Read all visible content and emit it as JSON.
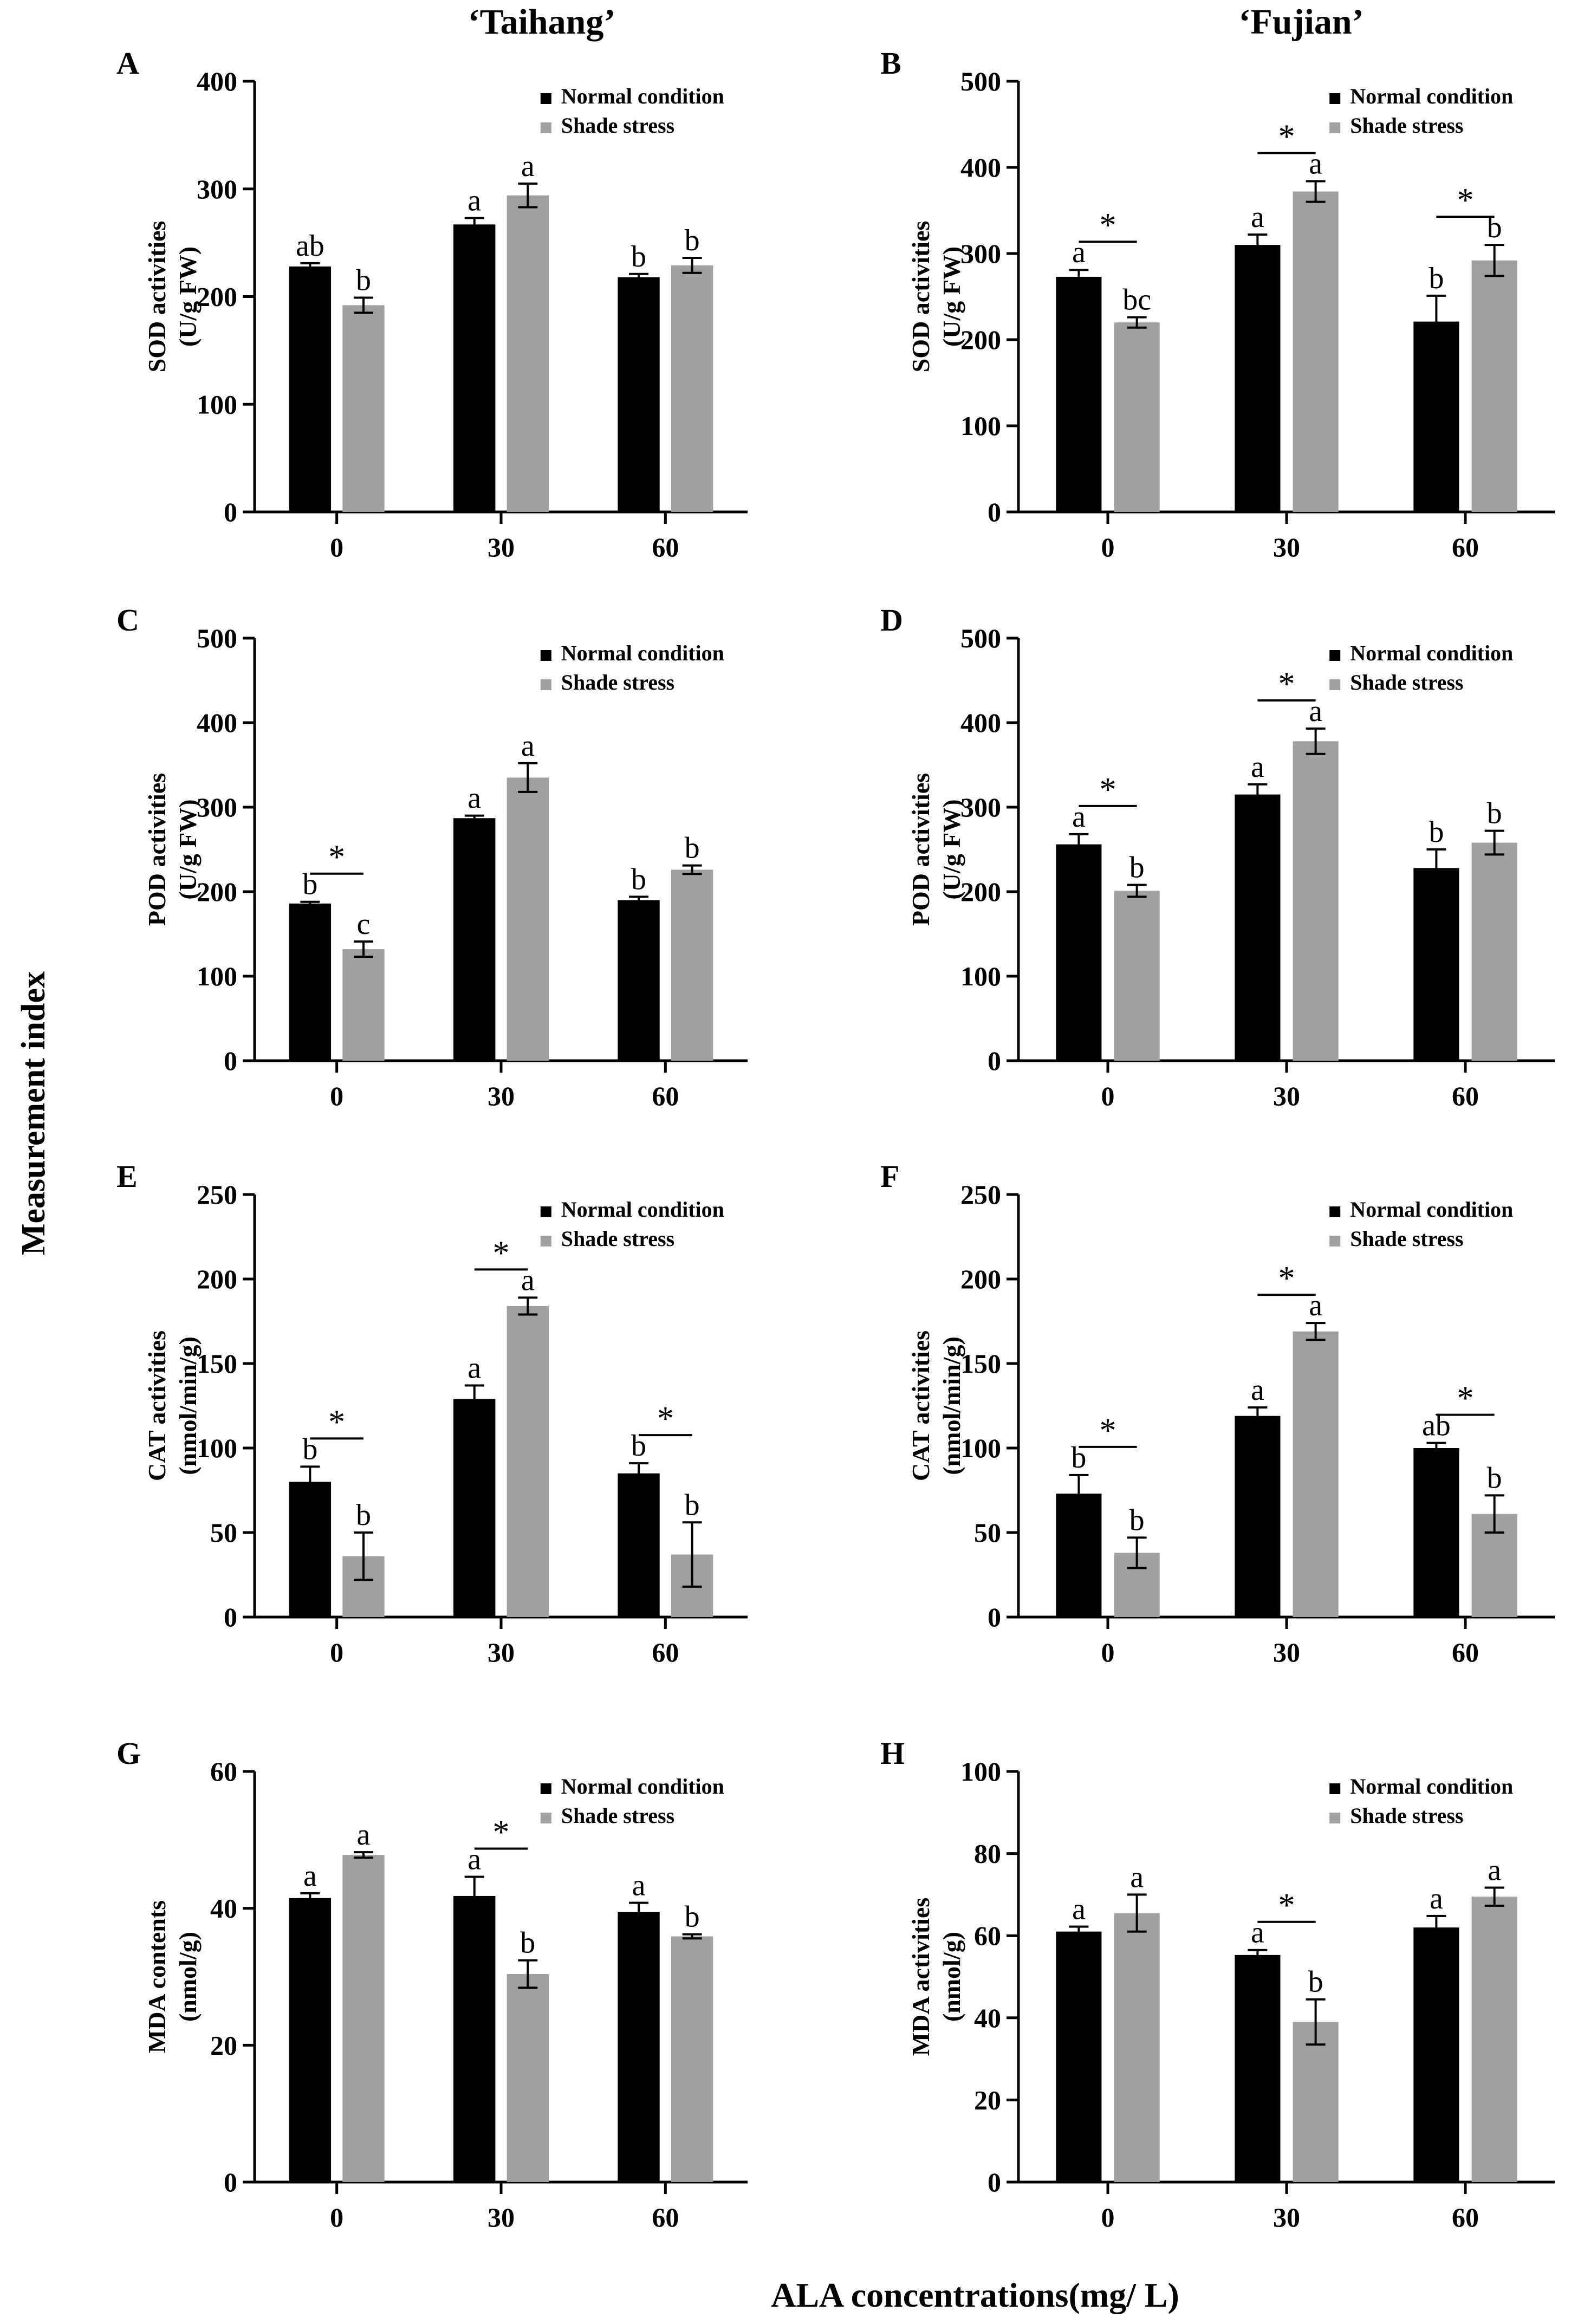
{
  "figure": {
    "column_titles": [
      "‘Taihang’",
      "‘Fujian’"
    ],
    "shared_ylabel": "Measurement index",
    "shared_xlabel": "ALA concentrations(mg/ L)"
  },
  "colors": {
    "normal": "#000000",
    "shade": "#a0a0a0",
    "axis": "#000000"
  },
  "chart_data": [
    {
      "type": "bar",
      "panel": "A",
      "column": "‘Taihang’",
      "ylabel_lines": [
        "SOD activities",
        "(U/g FW)"
      ],
      "categories": [
        "0",
        "30",
        "60"
      ],
      "ylim": [
        0,
        400
      ],
      "yticks": [
        "0",
        "100",
        "200",
        "300",
        "400"
      ],
      "series": [
        {
          "name": "Normal condition",
          "values": [
            228,
            267,
            218
          ],
          "err": [
            3,
            6,
            3
          ],
          "letters": [
            "ab",
            "a",
            "b"
          ]
        },
        {
          "name": "Shade stress",
          "values": [
            192,
            294,
            229
          ],
          "err": [
            7,
            11,
            7
          ],
          "letters": [
            "b",
            "a",
            "b"
          ]
        }
      ],
      "sig": []
    },
    {
      "type": "bar",
      "panel": "B",
      "column": "‘Fujian’",
      "ylabel_lines": [
        "SOD activities",
        "(U/g FW)"
      ],
      "categories": [
        "0",
        "30",
        "60"
      ],
      "ylim": [
        0,
        500
      ],
      "yticks": [
        "0",
        "100",
        "200",
        "300",
        "400",
        "500"
      ],
      "series": [
        {
          "name": "Normal condition",
          "values": [
            273,
            310,
            221
          ],
          "err": [
            8,
            12,
            30
          ],
          "letters": [
            "a",
            "a",
            "b"
          ]
        },
        {
          "name": "Shade stress",
          "values": [
            220,
            372,
            292
          ],
          "err": [
            6,
            12,
            18
          ],
          "letters": [
            "bc",
            "a",
            "b"
          ]
        }
      ],
      "sig": [
        {
          "category": "0",
          "label": "*"
        },
        {
          "category": "30",
          "label": "*"
        },
        {
          "category": "60",
          "label": "*"
        }
      ]
    },
    {
      "type": "bar",
      "panel": "C",
      "column": "‘Taihang’",
      "ylabel_lines": [
        "POD activities",
        "(U/g FW)"
      ],
      "categories": [
        "0",
        "30",
        "60"
      ],
      "ylim": [
        0,
        500
      ],
      "yticks": [
        "0",
        "100",
        "200",
        "300",
        "400",
        "500"
      ],
      "series": [
        {
          "name": "Normal condition",
          "values": [
            186,
            287,
            190
          ],
          "err": [
            2,
            3,
            4
          ],
          "letters": [
            "b",
            "a",
            "b"
          ]
        },
        {
          "name": "Shade stress",
          "values": [
            132,
            335,
            226
          ],
          "err": [
            9,
            17,
            5
          ],
          "letters": [
            "c",
            "a",
            "b"
          ]
        }
      ],
      "sig": [
        {
          "category": "0",
          "label": "*"
        }
      ]
    },
    {
      "type": "bar",
      "panel": "D",
      "column": "‘Fujian’",
      "ylabel_lines": [
        "POD activities",
        "(U/g FW)"
      ],
      "categories": [
        "0",
        "30",
        "60"
      ],
      "ylim": [
        0,
        500
      ],
      "yticks": [
        "0",
        "100",
        "200",
        "300",
        "400",
        "500"
      ],
      "series": [
        {
          "name": "Normal condition",
          "values": [
            256,
            315,
            228
          ],
          "err": [
            12,
            12,
            22
          ],
          "letters": [
            "a",
            "a",
            "b"
          ]
        },
        {
          "name": "Shade stress",
          "values": [
            201,
            378,
            258
          ],
          "err": [
            7,
            15,
            14
          ],
          "letters": [
            "b",
            "a",
            "b"
          ]
        }
      ],
      "sig": [
        {
          "category": "0",
          "label": "*"
        },
        {
          "category": "30",
          "label": "*"
        }
      ]
    },
    {
      "type": "bar",
      "panel": "E",
      "column": "‘Taihang’",
      "ylabel_lines": [
        "CAT activities",
        "(nmol/min/g)"
      ],
      "categories": [
        "0",
        "30",
        "60"
      ],
      "ylim": [
        0,
        250
      ],
      "yticks": [
        "0",
        "50",
        "100",
        "150",
        "200",
        "250"
      ],
      "series": [
        {
          "name": "Normal condition",
          "values": [
            80,
            129,
            85
          ],
          "err": [
            9,
            8,
            6
          ],
          "letters": [
            "b",
            "a",
            "b"
          ]
        },
        {
          "name": "Shade stress",
          "values": [
            36,
            184,
            37
          ],
          "err": [
            14,
            5,
            19
          ],
          "letters": [
            "b",
            "a",
            "b"
          ]
        }
      ],
      "sig": [
        {
          "category": "0",
          "label": "*"
        },
        {
          "category": "30",
          "label": "*"
        },
        {
          "category": "60",
          "label": "*"
        }
      ]
    },
    {
      "type": "bar",
      "panel": "F",
      "column": "‘Fujian’",
      "ylabel_lines": [
        "CAT activities",
        "(nmol/min/g)"
      ],
      "categories": [
        "0",
        "30",
        "60"
      ],
      "ylim": [
        0,
        250
      ],
      "yticks": [
        "0",
        "50",
        "100",
        "150",
        "200",
        "250"
      ],
      "series": [
        {
          "name": "Normal condition",
          "values": [
            73,
            119,
            100
          ],
          "err": [
            11,
            5,
            3
          ],
          "letters": [
            "b",
            "a",
            "ab"
          ]
        },
        {
          "name": "Shade stress",
          "values": [
            38,
            169,
            61
          ],
          "err": [
            9,
            5,
            11
          ],
          "letters": [
            "b",
            "a",
            "b"
          ]
        }
      ],
      "sig": [
        {
          "category": "0",
          "label": "*"
        },
        {
          "category": "30",
          "label": "*"
        },
        {
          "category": "60",
          "label": "*"
        }
      ]
    },
    {
      "type": "bar",
      "panel": "G",
      "column": "‘Taihang’",
      "ylabel_lines": [
        "MDA contents",
        "(nmol/g)"
      ],
      "categories": [
        "0",
        "30",
        "60"
      ],
      "ylim": [
        0,
        60
      ],
      "yticks": [
        "0",
        "20",
        "40",
        "60"
      ],
      "series": [
        {
          "name": "Normal condition",
          "values": [
            41.5,
            41.8,
            39.5
          ],
          "err": [
            0.7,
            2.8,
            1.3
          ],
          "letters": [
            "a",
            "a",
            "a"
          ]
        },
        {
          "name": "Shade stress",
          "values": [
            47.8,
            30.4,
            35.9
          ],
          "err": [
            0.4,
            2.0,
            0.3
          ],
          "letters": [
            "a",
            "b",
            "b"
          ]
        }
      ],
      "sig": [
        {
          "category": "30",
          "label": "*"
        }
      ]
    },
    {
      "type": "bar",
      "panel": "H",
      "column": "‘Fujian’",
      "ylabel_lines": [
        "MDA activities",
        "(nmol/g)"
      ],
      "categories": [
        "0",
        "30",
        "60"
      ],
      "ylim": [
        0,
        100
      ],
      "yticks": [
        "0",
        "20",
        "40",
        "60",
        "80",
        "100"
      ],
      "series": [
        {
          "name": "Normal condition",
          "values": [
            61,
            55.3,
            62
          ],
          "err": [
            1.2,
            1.2,
            2.8
          ],
          "letters": [
            "a",
            "a",
            "a"
          ]
        },
        {
          "name": "Shade stress",
          "values": [
            65.5,
            39,
            69.5
          ],
          "err": [
            4.5,
            5.5,
            2.2
          ],
          "letters": [
            "a",
            "b",
            "a"
          ]
        }
      ],
      "sig": [
        {
          "category": "30",
          "label": "*"
        }
      ]
    }
  ]
}
